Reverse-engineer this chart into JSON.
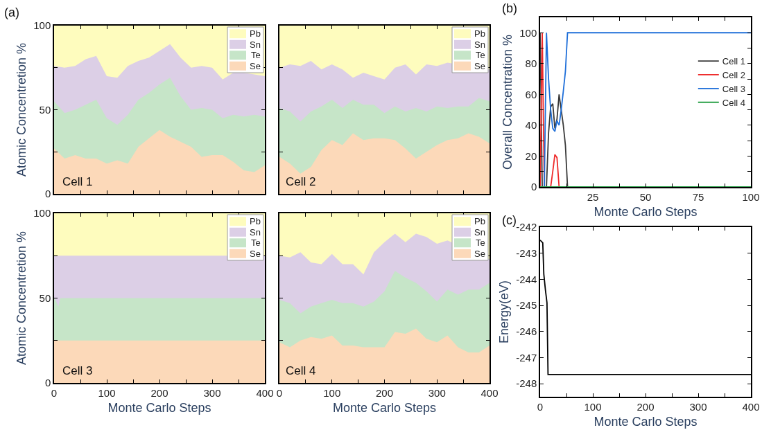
{
  "chart_data": [
    {
      "type": "area",
      "stacked": true,
      "ylabel": "Atomic Concentretion %",
      "tick_labels": "y",
      "legend": "top right",
      "annotations": [
        "Cell 1",
        "(a)"
      ],
      "xlim": [
        0,
        400
      ],
      "ylim": [
        0,
        100
      ],
      "xticks": [
        0,
        {
          "value": 50,
          "label": null
        },
        100,
        {
          "value": 150,
          "label": null
        },
        200,
        {
          "value": 250,
          "label": null
        },
        300,
        {
          "value": 350,
          "label": null
        },
        400
      ],
      "yticks": [
        0,
        {
          "value": 25,
          "label": null
        },
        50,
        {
          "value": 75,
          "label": null
        },
        100
      ],
      "x": [
        0,
        20,
        40,
        60,
        80,
        100,
        120,
        140,
        160,
        180,
        200,
        220,
        240,
        260,
        280,
        300,
        320,
        340,
        360,
        380,
        400
      ],
      "series": [
        {
          "name": "Se",
          "color": "#fcd9b9",
          "values": [
            27,
            21,
            23,
            21,
            21,
            18,
            20,
            18,
            28,
            33,
            38,
            34,
            31,
            28,
            22,
            23,
            23,
            19,
            14,
            13,
            17
          ]
        },
        {
          "name": "Te",
          "color": "#c6e5c8",
          "values": [
            28,
            27,
            27,
            32,
            35,
            27,
            21,
            29,
            28,
            27,
            27,
            35,
            27,
            22,
            29,
            27,
            22,
            28,
            32,
            34,
            29
          ]
        },
        {
          "name": "Sn",
          "color": "#dccfe6",
          "values": [
            21,
            27,
            26,
            27,
            26,
            25,
            28,
            29,
            23,
            21,
            20,
            20,
            23,
            25,
            25,
            25,
            23,
            25,
            26,
            null,
            24
          ]
        },
        {
          "name": "Pb",
          "color": "#fefcbe",
          "values": [
            24,
            25,
            24,
            20,
            18,
            30,
            31,
            24,
            21,
            19,
            15,
            11,
            19,
            25,
            24,
            25,
            32,
            28,
            28,
            null,
            30
          ]
        }
      ]
    },
    {
      "type": "area",
      "stacked": true,
      "tick_labels": false,
      "legend": "top right",
      "annotations": [
        "Cell 2"
      ],
      "xlim": [
        0,
        400
      ],
      "ylim": [
        0,
        100
      ],
      "xticks": [
        0,
        {
          "value": 50,
          "label": null
        },
        100,
        {
          "value": 150,
          "label": null
        },
        200,
        {
          "value": 250,
          "label": null
        },
        300,
        {
          "value": 350,
          "label": null
        },
        400
      ],
      "yticks": [
        0,
        {
          "value": 25,
          "label": null
        },
        50,
        {
          "value": 75,
          "label": null
        },
        100
      ],
      "x": [
        0,
        20,
        40,
        60,
        80,
        100,
        120,
        140,
        160,
        180,
        200,
        220,
        240,
        260,
        280,
        300,
        320,
        340,
        360,
        380,
        400
      ],
      "series": [
        {
          "name": "Se",
          "color": "#fcd9b9",
          "values": [
            22,
            18,
            12,
            16,
            26,
            32,
            29,
            36,
            32,
            33,
            33,
            32,
            27,
            21,
            25,
            29,
            32,
            33,
            36,
            34,
            30
          ]
        },
        {
          "name": "Te",
          "color": "#c6e5c8",
          "values": [
            29,
            31,
            31,
            33,
            26,
            24,
            22,
            20,
            21,
            20,
            15,
            20,
            22,
            30,
            24,
            23,
            19,
            19,
            16,
            23,
            25
          ]
        },
        {
          "name": "Sn",
          "color": "#dccfe6",
          "values": [
            24,
            28,
            33,
            30,
            22,
            21,
            23,
            13,
            19,
            17,
            20,
            23,
            28,
            20,
            28,
            24,
            27,
            null,
            null,
            null,
            19
          ]
        },
        {
          "name": "Pb",
          "color": "#fefcbe",
          "values": [
            25,
            23,
            24,
            21,
            26,
            23,
            26,
            31,
            28,
            30,
            32,
            25,
            23,
            29,
            23,
            24,
            22,
            null,
            null,
            null,
            26
          ]
        }
      ]
    },
    {
      "type": "area",
      "stacked": true,
      "ylabel": "Atomic Concentretion %",
      "xlabel": "Monte Carlo Steps",
      "legend": "top right",
      "annotations": [
        "Cell 3"
      ],
      "xlim": [
        0,
        400
      ],
      "ylim": [
        0,
        100
      ],
      "xticks": [
        0,
        {
          "value": 50,
          "label": null
        },
        100,
        {
          "value": 150,
          "label": null
        },
        200,
        {
          "value": 250,
          "label": null
        },
        300,
        {
          "value": 350,
          "label": null
        },
        400
      ],
      "yticks": [
        0,
        {
          "value": 25,
          "label": null
        },
        50,
        {
          "value": 75,
          "label": null
        },
        100
      ],
      "x": [
        0,
        4,
        8,
        12,
        400
      ],
      "series": [
        {
          "name": "Se",
          "color": "#fcd9b9",
          "values": [
            25,
            25,
            25,
            25,
            25
          ]
        },
        {
          "name": "Te",
          "color": "#c6e5c8",
          "values": [
            25,
            23,
            20,
            25,
            25
          ]
        },
        {
          "name": "Sn",
          "color": "#dccfe6",
          "values": [
            25,
            27,
            30,
            25,
            25
          ]
        },
        {
          "name": "Pb",
          "color": "#fefcbe",
          "values": [
            25,
            25,
            25,
            25,
            25
          ]
        }
      ]
    },
    {
      "type": "area",
      "stacked": true,
      "xlabel": "Monte Carlo Steps",
      "tick_labels": "x",
      "legend": "top right",
      "annotations": [
        "Cell 4"
      ],
      "xlim": [
        0,
        400
      ],
      "ylim": [
        0,
        100
      ],
      "xticks": [
        0,
        {
          "value": 50,
          "label": null
        },
        100,
        {
          "value": 150,
          "label": null
        },
        200,
        {
          "value": 250,
          "label": null
        },
        300,
        {
          "value": 350,
          "label": null
        },
        400
      ],
      "yticks": [
        0,
        {
          "value": 25,
          "label": null
        },
        50,
        {
          "value": 75,
          "label": null
        },
        100
      ],
      "x": [
        0,
        20,
        40,
        60,
        80,
        100,
        120,
        140,
        160,
        180,
        200,
        220,
        240,
        260,
        280,
        300,
        320,
        340,
        360,
        380,
        400
      ],
      "series": [
        {
          "name": "Se",
          "color": "#fcd9b9",
          "values": [
            24,
            21,
            25,
            27,
            26,
            28,
            22,
            22,
            21,
            21,
            21,
            30,
            29,
            32,
            26,
            24,
            28,
            21,
            18,
            18,
            22
          ]
        },
        {
          "name": "Te",
          "color": "#c6e5c8",
          "values": [
            25,
            26,
            16,
            18,
            21,
            21,
            25,
            25,
            24,
            27,
            33,
            36,
            33,
            27,
            28,
            24,
            27,
            31,
            37,
            37,
            37
          ]
        },
        {
          "name": "Sn",
          "color": "#dccfe6",
          "values": [
            26,
            27,
            36,
            26,
            23,
            27,
            23,
            23,
            19,
            29,
            29,
            22,
            21,
            29,
            32,
            34,
            29,
            null,
            null,
            null,
            14
          ]
        },
        {
          "name": "Pb",
          "color": "#fefcbe",
          "values": [
            25,
            26,
            23,
            29,
            30,
            24,
            30,
            30,
            36,
            23,
            17,
            12,
            17,
            12,
            14,
            18,
            16,
            null,
            null,
            null,
            27
          ]
        }
      ]
    },
    {
      "type": "line",
      "xlabel": "Monte Carlo Steps",
      "ylabel": "Overall Concentration %",
      "legend": "right",
      "annotations": [
        "(b)"
      ],
      "xlim": [
        0,
        100
      ],
      "ylim": [
        0,
        110
      ],
      "xticks": [
        {
          "value": 12.5,
          "label": null
        },
        25,
        {
          "value": 37.5,
          "label": null
        },
        50,
        {
          "value": 62.5,
          "label": null
        },
        75,
        {
          "value": 87.5,
          "label": null
        },
        100
      ],
      "yticks": [
        0,
        {
          "value": 10,
          "label": null
        },
        20,
        {
          "value": 30,
          "label": null
        },
        40,
        {
          "value": 50,
          "label": null
        },
        60,
        {
          "value": 70,
          "label": null
        },
        80,
        {
          "value": 90,
          "label": null
        },
        100
      ],
      "series": [
        {
          "name": "Cell 1",
          "color": "#3a3a3a",
          "x": [
            0,
            1,
            2,
            3,
            4,
            5,
            6,
            7,
            8,
            9,
            10,
            11,
            12,
            13,
            100
          ],
          "values": [
            100,
            0,
            0,
            0,
            35,
            52,
            54,
            38,
            44,
            60,
            50,
            40,
            27,
            0,
            0
          ]
        },
        {
          "name": "Cell 2",
          "color": "#ee2a2a",
          "x": [
            0,
            1,
            2,
            3,
            4,
            5,
            6,
            7,
            8,
            9,
            100
          ],
          "values": [
            0,
            100,
            0,
            0,
            0,
            0,
            10,
            21,
            19,
            0,
            0
          ]
        },
        {
          "name": "Cell 3",
          "color": "#1f6fd9",
          "x": [
            0,
            1,
            2,
            3,
            4,
            5,
            6,
            7,
            8,
            9,
            10,
            11,
            12,
            13,
            100
          ],
          "values": [
            0,
            0,
            0,
            100,
            70,
            50,
            38,
            36,
            43,
            40,
            50,
            62,
            75,
            100,
            100
          ]
        },
        {
          "name": "Cell 4",
          "color": "#2aa048",
          "x": [
            0,
            100
          ],
          "values": [
            0,
            0
          ]
        }
      ]
    },
    {
      "type": "line",
      "xlabel": "Monte Carlo Steps",
      "ylabel": "Energy(eV)",
      "annotations": [
        "(c)"
      ],
      "xlim": [
        0,
        400
      ],
      "ylim": [
        -248.5,
        -242
      ],
      "xticks": [
        0,
        {
          "value": 50,
          "label": null
        },
        100,
        {
          "value": 150,
          "label": null
        },
        200,
        {
          "value": 250,
          "label": null
        },
        300,
        {
          "value": 350,
          "label": null
        },
        400
      ],
      "yticks": [
        -248,
        -247,
        -246,
        -245,
        -244,
        -243,
        -242
      ],
      "series": [
        {
          "color": "#000000",
          "x": [
            0,
            5,
            7,
            10,
            13,
            15,
            400
          ],
          "values": [
            -242.5,
            -242.6,
            -243.8,
            -244.4,
            -244.9,
            -247.65,
            -247.65
          ]
        }
      ]
    }
  ]
}
